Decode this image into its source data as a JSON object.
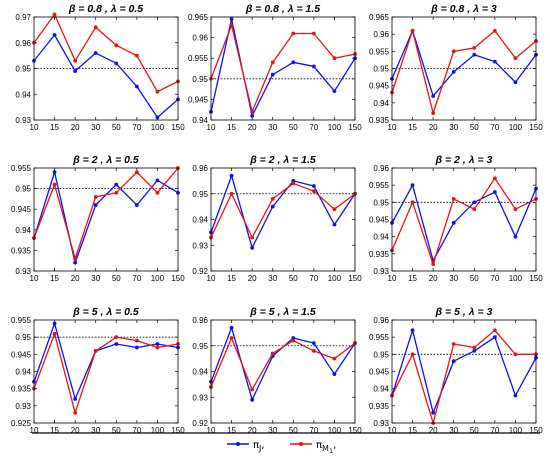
{
  "legend": {
    "items": [
      {
        "symbol": "π",
        "sub": "J",
        "suffix": ",",
        "color": "#0a14e6"
      },
      {
        "symbol": "π",
        "sub": "M",
        "subsub": "1",
        "suffix": ",",
        "color": "#e61414"
      }
    ]
  },
  "chart_data": [
    {
      "type": "line",
      "title": "β = 0.8 , λ = 0.5",
      "categories": [
        "10",
        "15",
        "20",
        "30",
        "50",
        "70",
        "100",
        "150"
      ],
      "ylim": [
        0.93,
        0.97
      ],
      "yticks": [
        "0.93",
        "0.94",
        "0.95",
        "0.96",
        "0.97"
      ],
      "reference": 0.95,
      "series": [
        {
          "name": "πJ",
          "color": "#0a14e6",
          "values": [
            0.953,
            0.963,
            0.949,
            0.956,
            0.952,
            0.943,
            0.931,
            0.938
          ]
        },
        {
          "name": "πM1",
          "color": "#e61414",
          "values": [
            0.96,
            0.971,
            0.953,
            0.966,
            0.959,
            0.955,
            0.941,
            0.945
          ]
        }
      ]
    },
    {
      "type": "line",
      "title": "β = 0.8 , λ = 1.5",
      "categories": [
        "10",
        "15",
        "20",
        "30",
        "50",
        "70",
        "100",
        "150"
      ],
      "ylim": [
        0.94,
        0.965
      ],
      "yticks": [
        "0.94",
        "0.945",
        "0.95",
        "0.955",
        "0.96",
        "0.965"
      ],
      "reference": 0.95,
      "series": [
        {
          "name": "πJ",
          "color": "#0a14e6",
          "values": [
            0.942,
            0.9645,
            0.941,
            0.951,
            0.954,
            0.953,
            0.947,
            0.955
          ]
        },
        {
          "name": "πM1",
          "color": "#e61414",
          "values": [
            0.95,
            0.963,
            0.942,
            0.954,
            0.961,
            0.961,
            0.955,
            0.956
          ]
        }
      ]
    },
    {
      "type": "line",
      "title": "β = 0.8 , λ = 3",
      "categories": [
        "10",
        "15",
        "20",
        "30",
        "50",
        "70",
        "100",
        "150"
      ],
      "ylim": [
        0.935,
        0.965
      ],
      "yticks": [
        "0.935",
        "0.94",
        "0.945",
        "0.95",
        "0.955",
        "0.96",
        "0.965"
      ],
      "reference": 0.95,
      "series": [
        {
          "name": "πJ",
          "color": "#0a14e6",
          "values": [
            0.947,
            0.961,
            0.942,
            0.949,
            0.954,
            0.952,
            0.946,
            0.954
          ]
        },
        {
          "name": "πM1",
          "color": "#e61414",
          "values": [
            0.943,
            0.961,
            0.937,
            0.955,
            0.956,
            0.961,
            0.953,
            0.958
          ]
        }
      ]
    },
    {
      "type": "line",
      "title": "β = 2 , λ = 0.5",
      "categories": [
        "10",
        "15",
        "20",
        "30",
        "50",
        "70",
        "100",
        "150"
      ],
      "ylim": [
        0.93,
        0.955
      ],
      "yticks": [
        "0.93",
        "0.935",
        "0.94",
        "0.945",
        "0.95",
        "0.955"
      ],
      "reference": 0.95,
      "series": [
        {
          "name": "πJ",
          "color": "#0a14e6",
          "values": [
            0.938,
            0.954,
            0.932,
            0.946,
            0.951,
            0.946,
            0.952,
            0.949
          ]
        },
        {
          "name": "πM1",
          "color": "#e61414",
          "values": [
            0.938,
            0.951,
            0.933,
            0.948,
            0.949,
            0.954,
            0.949,
            0.955
          ]
        }
      ]
    },
    {
      "type": "line",
      "title": "β = 2 , λ = 1.5",
      "categories": [
        "10",
        "15",
        "20",
        "30",
        "50",
        "70",
        "100",
        "150"
      ],
      "ylim": [
        0.92,
        0.96
      ],
      "yticks": [
        "0.92",
        "0.93",
        "0.94",
        "0.95",
        "0.96"
      ],
      "reference": 0.95,
      "series": [
        {
          "name": "πJ",
          "color": "#0a14e6",
          "values": [
            0.935,
            0.957,
            0.929,
            0.945,
            0.955,
            0.953,
            0.938,
            0.95
          ]
        },
        {
          "name": "πM1",
          "color": "#e61414",
          "values": [
            0.933,
            0.95,
            0.933,
            0.948,
            0.954,
            0.951,
            0.944,
            0.95
          ]
        }
      ]
    },
    {
      "type": "line",
      "title": "β = 2 , λ = 3",
      "categories": [
        "10",
        "15",
        "20",
        "30",
        "50",
        "70",
        "100",
        "150"
      ],
      "ylim": [
        0.93,
        0.96
      ],
      "yticks": [
        "0.93",
        "0.935",
        "0.94",
        "0.945",
        "0.95",
        "0.955",
        "0.96"
      ],
      "reference": 0.95,
      "series": [
        {
          "name": "πJ",
          "color": "#0a14e6",
          "values": [
            0.944,
            0.955,
            0.933,
            0.944,
            0.95,
            0.953,
            0.94,
            0.954
          ]
        },
        {
          "name": "πM1",
          "color": "#e61414",
          "values": [
            0.936,
            0.95,
            0.932,
            0.951,
            0.948,
            0.957,
            0.948,
            0.951
          ]
        }
      ]
    },
    {
      "type": "line",
      "title": "β = 5 , λ = 0.5",
      "categories": [
        "10",
        "15",
        "20",
        "30",
        "50",
        "70",
        "100",
        "150"
      ],
      "ylim": [
        0.925,
        0.955
      ],
      "yticks": [
        "0.925",
        "0.93",
        "0.935",
        "0.94",
        "0.945",
        "0.95",
        "0.955"
      ],
      "reference": 0.95,
      "series": [
        {
          "name": "πJ",
          "color": "#0a14e6",
          "values": [
            0.937,
            0.954,
            0.932,
            0.946,
            0.948,
            0.947,
            0.948,
            0.947
          ]
        },
        {
          "name": "πM1",
          "color": "#e61414",
          "values": [
            0.935,
            0.951,
            0.928,
            0.946,
            0.95,
            0.949,
            0.947,
            0.948
          ]
        }
      ]
    },
    {
      "type": "line",
      "title": "β = 5 , λ = 1.5",
      "categories": [
        "10",
        "15",
        "20",
        "30",
        "50",
        "70",
        "100",
        "150"
      ],
      "ylim": [
        0.92,
        0.96
      ],
      "yticks": [
        "0.92",
        "0.93",
        "0.94",
        "0.95",
        "0.96"
      ],
      "reference": 0.95,
      "series": [
        {
          "name": "πJ",
          "color": "#0a14e6",
          "values": [
            0.936,
            0.957,
            0.929,
            0.946,
            0.953,
            0.951,
            0.939,
            0.951
          ]
        },
        {
          "name": "πM1",
          "color": "#e61414",
          "values": [
            0.934,
            0.953,
            0.933,
            0.947,
            0.952,
            0.948,
            0.945,
            0.951
          ]
        }
      ]
    },
    {
      "type": "line",
      "title": "β = 5 , λ = 3",
      "categories": [
        "10",
        "15",
        "20",
        "30",
        "50",
        "70",
        "100",
        "150"
      ],
      "ylim": [
        0.93,
        0.96
      ],
      "yticks": [
        "0.93",
        "0.935",
        "0.94",
        "0.945",
        "0.95",
        "0.955",
        "0.96"
      ],
      "reference": 0.95,
      "series": [
        {
          "name": "πJ",
          "color": "#0a14e6",
          "values": [
            0.938,
            0.957,
            0.933,
            0.948,
            0.951,
            0.955,
            0.938,
            0.949
          ]
        },
        {
          "name": "πM1",
          "color": "#e61414",
          "values": [
            0.938,
            0.95,
            0.93,
            0.953,
            0.952,
            0.957,
            0.95,
            0.95
          ]
        }
      ]
    }
  ]
}
